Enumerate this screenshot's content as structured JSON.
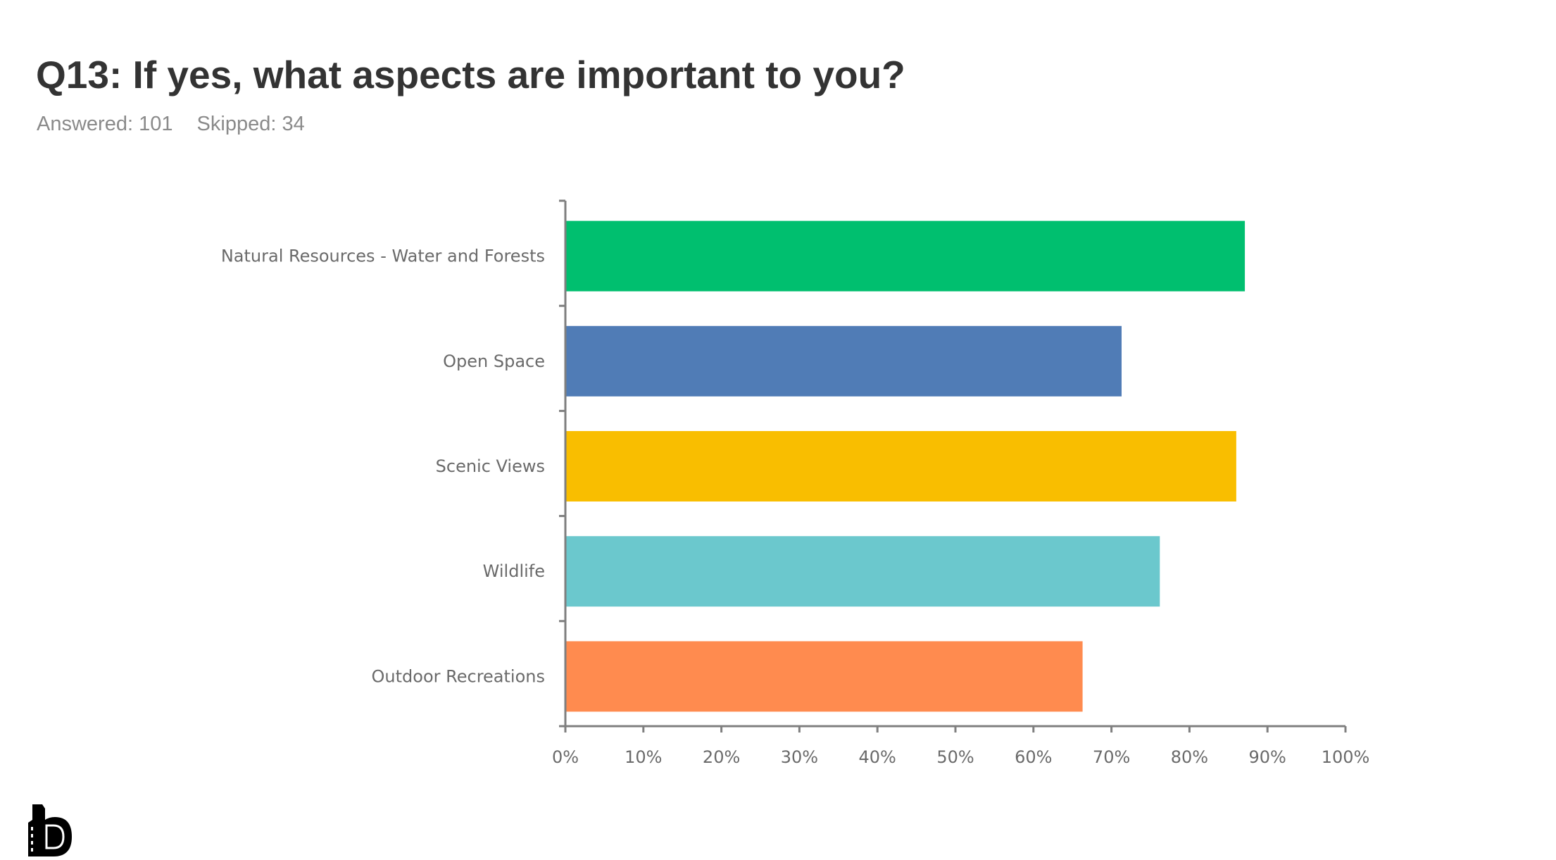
{
  "header": {
    "title": "Q13: If yes, what aspects are important to you?",
    "answered": "Answered: 101",
    "skipped": "Skipped: 34"
  },
  "chart_data": {
    "type": "bar",
    "orientation": "horizontal",
    "title": "Q13: If yes, what aspects are important to you?",
    "categories": [
      "Natural Resources - Water and Forests",
      "Open Space",
      "Scenic Views",
      "Wildlife",
      "Outdoor Recreations"
    ],
    "values": [
      87.1,
      71.3,
      86.0,
      76.2,
      66.3
    ],
    "colors": [
      "#00BF6F",
      "#507CB6",
      "#F9BE00",
      "#6BC8CD",
      "#FF8B4F"
    ],
    "xlabel": "",
    "ylabel": "",
    "xlim": [
      0,
      100
    ],
    "xticks": [
      "0%",
      "10%",
      "20%",
      "30%",
      "40%",
      "50%",
      "60%",
      "70%",
      "80%",
      "90%",
      "100%"
    ],
    "grid": false,
    "legend": "none"
  },
  "logo": {
    "text": "b",
    "icon": "company-logo-icon"
  }
}
